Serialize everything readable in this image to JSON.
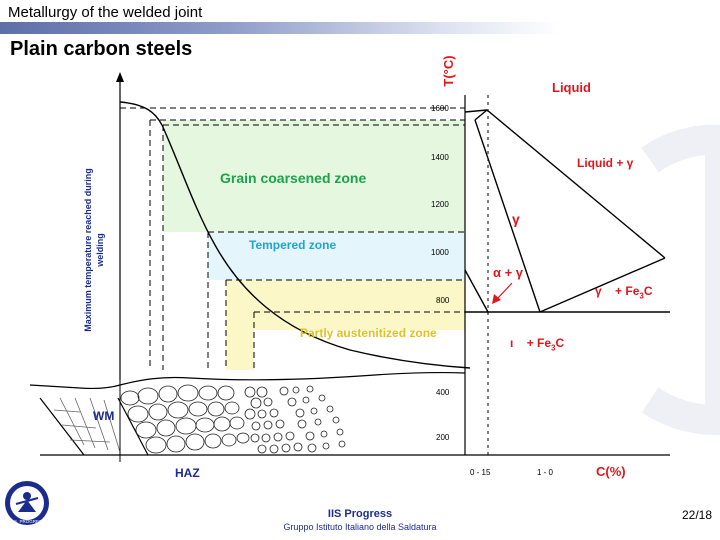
{
  "header": {
    "text": "Metallurgy of the welded joint"
  },
  "slide": {
    "title": "Plain carbon steels"
  },
  "diagram": {
    "y_axis_label": "T(°C)",
    "x_axis_label": "C(%)",
    "y_ticks": [
      "1600",
      "1400",
      "1200",
      "1000",
      "800",
      "400",
      "200"
    ],
    "x_ticks": [
      "0 - 15",
      "1 - 0"
    ],
    "vertical_label_line1": "Maximum temperature reached during",
    "vertical_label_line2": "welding",
    "zones": {
      "grain_coarsened": "Grain coarsened zone",
      "tempered": "Tempered zone",
      "partly_austenitized": "Partly austenitized zone"
    },
    "weld": {
      "wm": "WM",
      "haz": "HAZ"
    },
    "phases": {
      "liquid": "Liquid",
      "liquid_gamma_prefix": "Liquid + ",
      "gamma": "γ",
      "alpha_gamma": "α + γ",
      "gamma_fe3c_phase": "γ",
      "gamma_fe3c_rest": "+ Fe",
      "alpha_fe3c_phase": "ι",
      "alpha_fe3c_rest": "+ Fe",
      "sub3": "3",
      "carbide_c": "C"
    },
    "colors": {
      "gcz": "#e6f7e0",
      "tempered": "#e4f6fb",
      "partly": "#fbf7c7",
      "green_label": "#1aa34a",
      "blue_label": "#22a3d6",
      "yellow_label": "#e5c019",
      "red": "#e0161b",
      "navy": "#1b2c8f"
    }
  },
  "footer": {
    "org": "IIS Progress",
    "subtitle": "Gruppo Istituto Italiano della Saldatura",
    "page": "22/18",
    "logo_text": "I.I.S. PROGRESS"
  }
}
